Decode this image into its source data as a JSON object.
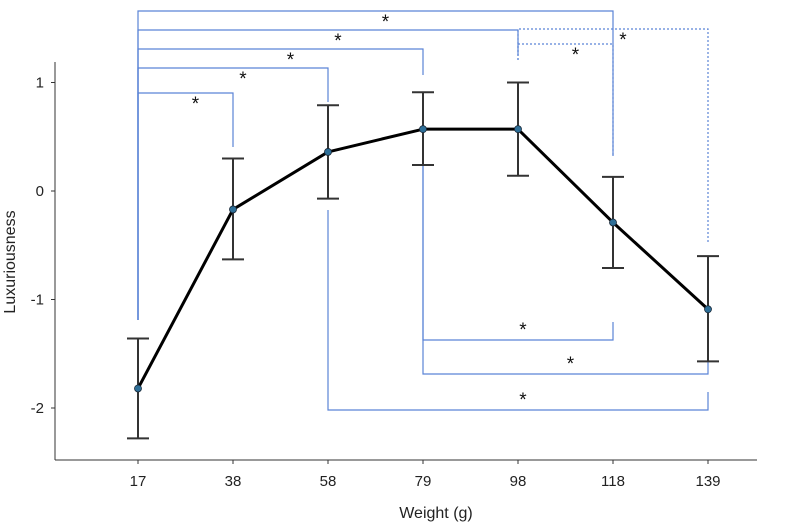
{
  "chart_data": {
    "type": "line",
    "xlabel": "Weight (g)",
    "ylabel": "Luxuriousness",
    "ylim": [
      -2.45,
      1.25
    ],
    "y_ticks": [
      1,
      0,
      -1,
      -2
    ],
    "y_tick_labels": [
      "1",
      "0",
      "-1",
      "-2"
    ],
    "categories": [
      "17",
      "38",
      "58",
      "79",
      "98",
      "118",
      "139"
    ],
    "values": [
      -1.82,
      -0.17,
      0.36,
      0.57,
      0.57,
      -0.29,
      -1.09
    ],
    "error_low": [
      -2.28,
      -0.63,
      -0.07,
      0.24,
      0.14,
      -0.71,
      -1.57
    ],
    "error_high": [
      -1.36,
      0.3,
      0.79,
      0.91,
      1.0,
      0.13,
      -0.6
    ],
    "grid": false,
    "line_color": "#000000",
    "marker_color": "#2e6f98",
    "errorbar_color": "#333333",
    "bracket_color": "#5b84d6",
    "significance_brackets": [
      {
        "from": "17",
        "to": "38",
        "label": "*",
        "side": "above",
        "style": "solid"
      },
      {
        "from": "17",
        "to": "58",
        "label": "*",
        "side": "above",
        "style": "solid"
      },
      {
        "from": "17",
        "to": "79",
        "label": "*",
        "side": "above",
        "style": "solid"
      },
      {
        "from": "17",
        "to": "98",
        "label": "*",
        "side": "above",
        "style": "solid"
      },
      {
        "from": "17",
        "to": "118",
        "label": "*",
        "side": "above",
        "style": "solid"
      },
      {
        "from": "98",
        "to": "118",
        "label": "*",
        "side": "above",
        "style": "dotted"
      },
      {
        "from": "98",
        "to": "139",
        "label": "*",
        "side": "above",
        "style": "dotted"
      },
      {
        "from": "79",
        "to": "118",
        "label": "*",
        "side": "below",
        "style": "solid"
      },
      {
        "from": "79",
        "to": "139",
        "label": "*",
        "side": "below",
        "style": "solid"
      },
      {
        "from": "58",
        "to": "139",
        "label": "*",
        "side": "below",
        "style": "solid"
      }
    ]
  }
}
